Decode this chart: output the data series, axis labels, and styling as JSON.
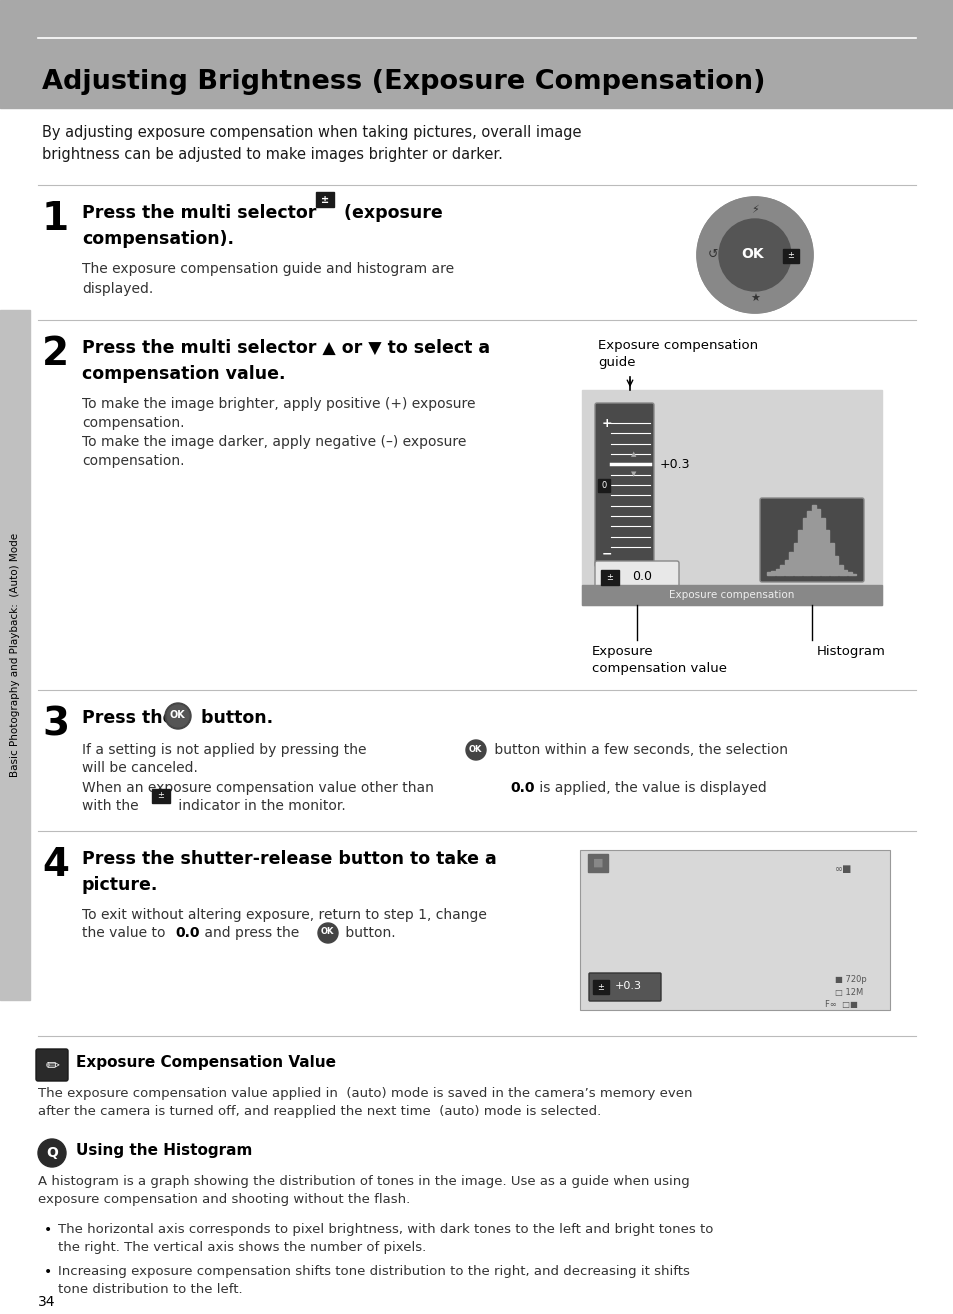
{
  "title": "Adjusting Brightness (Exposure Compensation)",
  "bg_color": "#ffffff",
  "header_bg": "#a8a8a8",
  "sidebar_bg": "#c0c0c0",
  "page_number": "34",
  "sidebar_text": "Basic Photography and Playback:  (Auto) Mode",
  "intro_text": "By adjusting exposure compensation when taking pictures, overall image\nbrightness can be adjusted to make images brighter or darker.",
  "step1_num": "1",
  "step1_normal": "The exposure compensation guide and histogram are\ndisplayed.",
  "step2_num": "2",
  "step2_normal1": "To make the image brighter, apply positive (+) exposure\ncompensation.",
  "step2_normal2": "To make the image darker, apply negative (–) exposure\ncompensation.",
  "step2_label1": "Exposure compensation\nguide",
  "step2_label2": "Exposure\ncompensation value",
  "step2_label3": "Histogram",
  "step3_num": "3",
  "step4_num": "4",
  "step4_normal1": "To exit without altering exposure, return to step 1, change",
  "step4_normal2": "the value to ",
  "step4_normal3": " and press the ",
  "step4_normal4": " button.",
  "note1_title": "Exposure Compensation Value",
  "note1_text": "The exposure compensation value applied in  (auto) mode is saved in the camera’s memory even\nafter the camera is turned off, and reapplied the next time  (auto) mode is selected.",
  "note2_title": "Using the Histogram",
  "note2_text": "A histogram is a graph showing the distribution of tones in the image. Use as a guide when using\nexposure compensation and shooting without the flash.",
  "bullet1": "The horizontal axis corresponds to pixel brightness, with dark tones to the left and bright tones to\nthe right. The vertical axis shows the number of pixels.",
  "bullet2": "Increasing exposure compensation shifts tone distribution to the right, and decreasing it shifts\ntone distribution to the left."
}
